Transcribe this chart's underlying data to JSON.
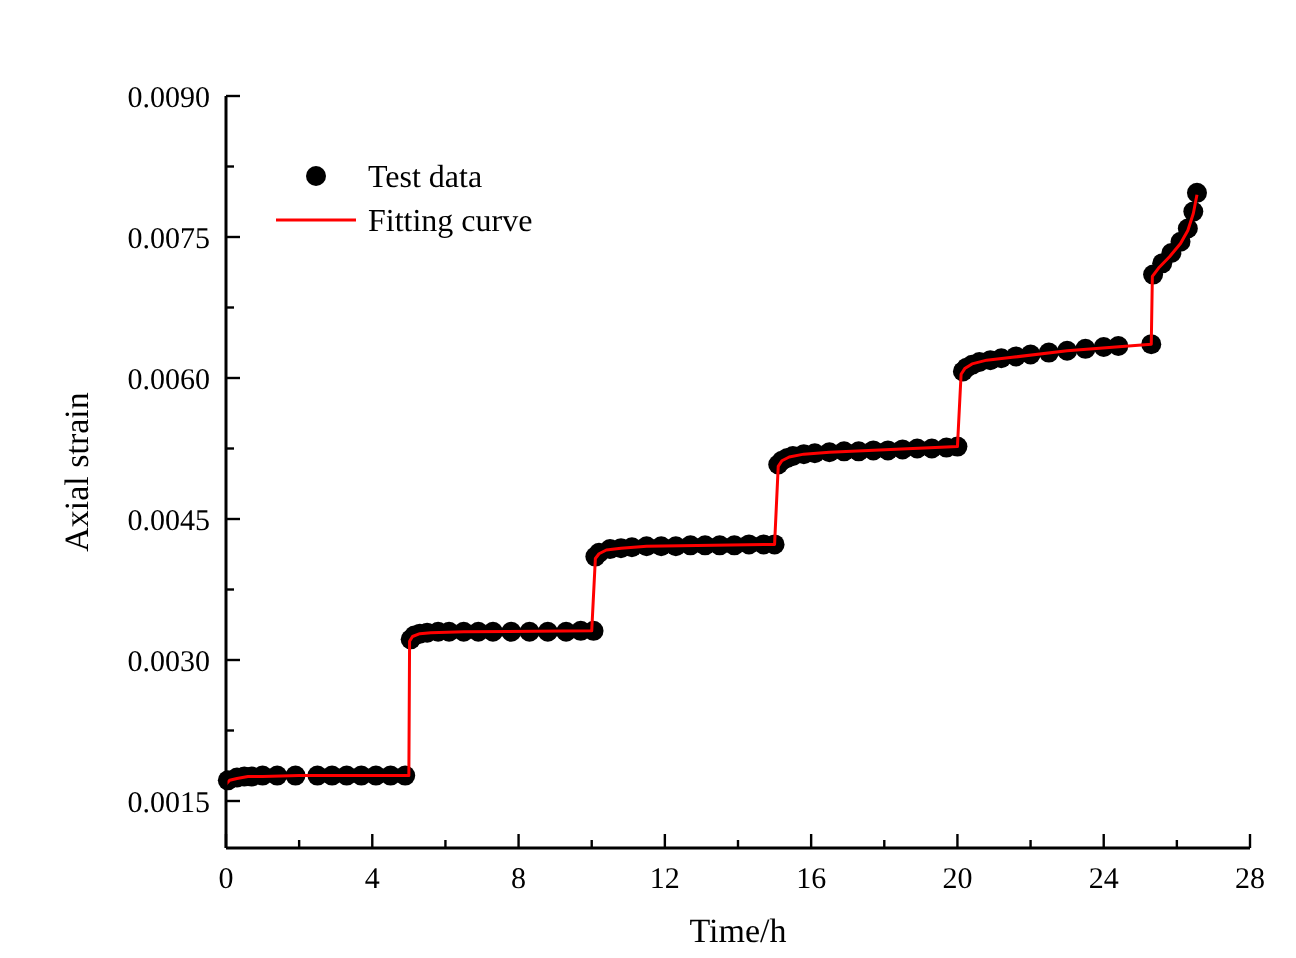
{
  "chart_data": {
    "type": "scatter",
    "xlabel": "Time/h",
    "ylabel": "Axial strain",
    "xlim": [
      0,
      28
    ],
    "ylim": [
      0.001,
      0.009
    ],
    "xticks": [
      0,
      {
        "value": 2,
        "label": null
      },
      4,
      {
        "value": 6,
        "label": null
      },
      8,
      {
        "value": 10,
        "label": null
      },
      12,
      {
        "value": 14,
        "label": null
      },
      16,
      {
        "value": 18,
        "label": null
      },
      20,
      {
        "value": 22,
        "label": null
      },
      24,
      {
        "value": 26,
        "label": null
      },
      28
    ],
    "yticks": [
      {
        "value": 0.0015,
        "label": "0.0015"
      },
      {
        "value": 0.00225,
        "label": null
      },
      {
        "value": 0.003,
        "label": "0.0030"
      },
      {
        "value": 0.00375,
        "label": null
      },
      {
        "value": 0.0045,
        "label": "0.0045"
      },
      {
        "value": 0.00525,
        "label": null
      },
      {
        "value": 0.006,
        "label": "0.0060"
      },
      {
        "value": 0.00675,
        "label": null
      },
      {
        "value": 0.0075,
        "label": "0.0075"
      },
      {
        "value": 0.00825,
        "label": null
      },
      {
        "value": 0.009,
        "label": "0.0090"
      }
    ],
    "legend": "top left",
    "grid": false,
    "series": [
      {
        "name": "Test data",
        "marker": "circle",
        "color": "#000000",
        "x": [
          0.05,
          0.3,
          0.5,
          0.7,
          1.0,
          1.4,
          1.9,
          2.5,
          2.9,
          3.3,
          3.7,
          4.1,
          4.5,
          4.9,
          5.05,
          5.15,
          5.3,
          5.5,
          5.8,
          6.1,
          6.5,
          6.9,
          7.3,
          7.8,
          8.3,
          8.8,
          9.3,
          9.7,
          10.05,
          10.1,
          10.2,
          10.5,
          10.8,
          11.1,
          11.5,
          11.9,
          12.3,
          12.7,
          13.1,
          13.5,
          13.9,
          14.3,
          14.7,
          15.0,
          15.1,
          15.2,
          15.35,
          15.5,
          15.8,
          16.1,
          16.5,
          16.9,
          17.3,
          17.7,
          18.1,
          18.5,
          18.9,
          19.3,
          19.7,
          20.0,
          20.15,
          20.25,
          20.4,
          20.6,
          20.9,
          21.2,
          21.6,
          22.0,
          22.5,
          23.0,
          23.5,
          24.0,
          24.4,
          25.3,
          25.35,
          25.6,
          25.85,
          26.1,
          26.3,
          26.45,
          26.55
        ],
        "values": [
          0.00172,
          0.00175,
          0.00176,
          0.00176,
          0.00177,
          0.00177,
          0.00177,
          0.00177,
          0.00177,
          0.00177,
          0.00177,
          0.00177,
          0.00177,
          0.00177,
          0.00322,
          0.00326,
          0.00328,
          0.00329,
          0.0033,
          0.0033,
          0.0033,
          0.0033,
          0.0033,
          0.0033,
          0.0033,
          0.0033,
          0.0033,
          0.00331,
          0.00331,
          0.0041,
          0.00414,
          0.00418,
          0.00419,
          0.0042,
          0.00421,
          0.00421,
          0.00421,
          0.00422,
          0.00422,
          0.00422,
          0.00422,
          0.00423,
          0.00423,
          0.00423,
          0.00508,
          0.00512,
          0.00515,
          0.00517,
          0.00519,
          0.0052,
          0.00521,
          0.00522,
          0.00522,
          0.00523,
          0.00523,
          0.00524,
          0.00525,
          0.00525,
          0.00526,
          0.00527,
          0.00607,
          0.00611,
          0.00614,
          0.00617,
          0.00619,
          0.00621,
          0.00623,
          0.00625,
          0.00627,
          0.00629,
          0.00631,
          0.00633,
          0.00634,
          0.00636,
          0.0071,
          0.00722,
          0.00733,
          0.00745,
          0.00759,
          0.00777,
          0.00797
        ]
      },
      {
        "name": "Fitting curve",
        "type": "line",
        "marker": "none",
        "line_style": "solid",
        "color": "#ff0000",
        "x": [
          0,
          0.1,
          0.3,
          0.6,
          1.0,
          2.0,
          5.0,
          5.02,
          5.1,
          5.3,
          5.6,
          6.5,
          10.0,
          10.1,
          10.2,
          10.4,
          10.8,
          11.5,
          15.0,
          15.1,
          15.2,
          15.4,
          15.8,
          16.5,
          20.0,
          20.1,
          20.2,
          20.4,
          20.8,
          21.5,
          23.0,
          25.3,
          25.33,
          25.5,
          25.8,
          26.1,
          26.3,
          26.45,
          26.55
        ],
        "values": [
          0.00168,
          0.00172,
          0.00174,
          0.00176,
          0.00176,
          0.00177,
          0.00177,
          0.0032,
          0.00325,
          0.00328,
          0.00329,
          0.0033,
          0.00331,
          0.00408,
          0.00413,
          0.00417,
          0.00419,
          0.00421,
          0.00423,
          0.00506,
          0.00512,
          0.00516,
          0.00519,
          0.00521,
          0.00527,
          0.00604,
          0.0061,
          0.00615,
          0.00619,
          0.00622,
          0.00629,
          0.00636,
          0.00708,
          0.00717,
          0.00729,
          0.00743,
          0.00757,
          0.00775,
          0.00795
        ]
      }
    ]
  }
}
